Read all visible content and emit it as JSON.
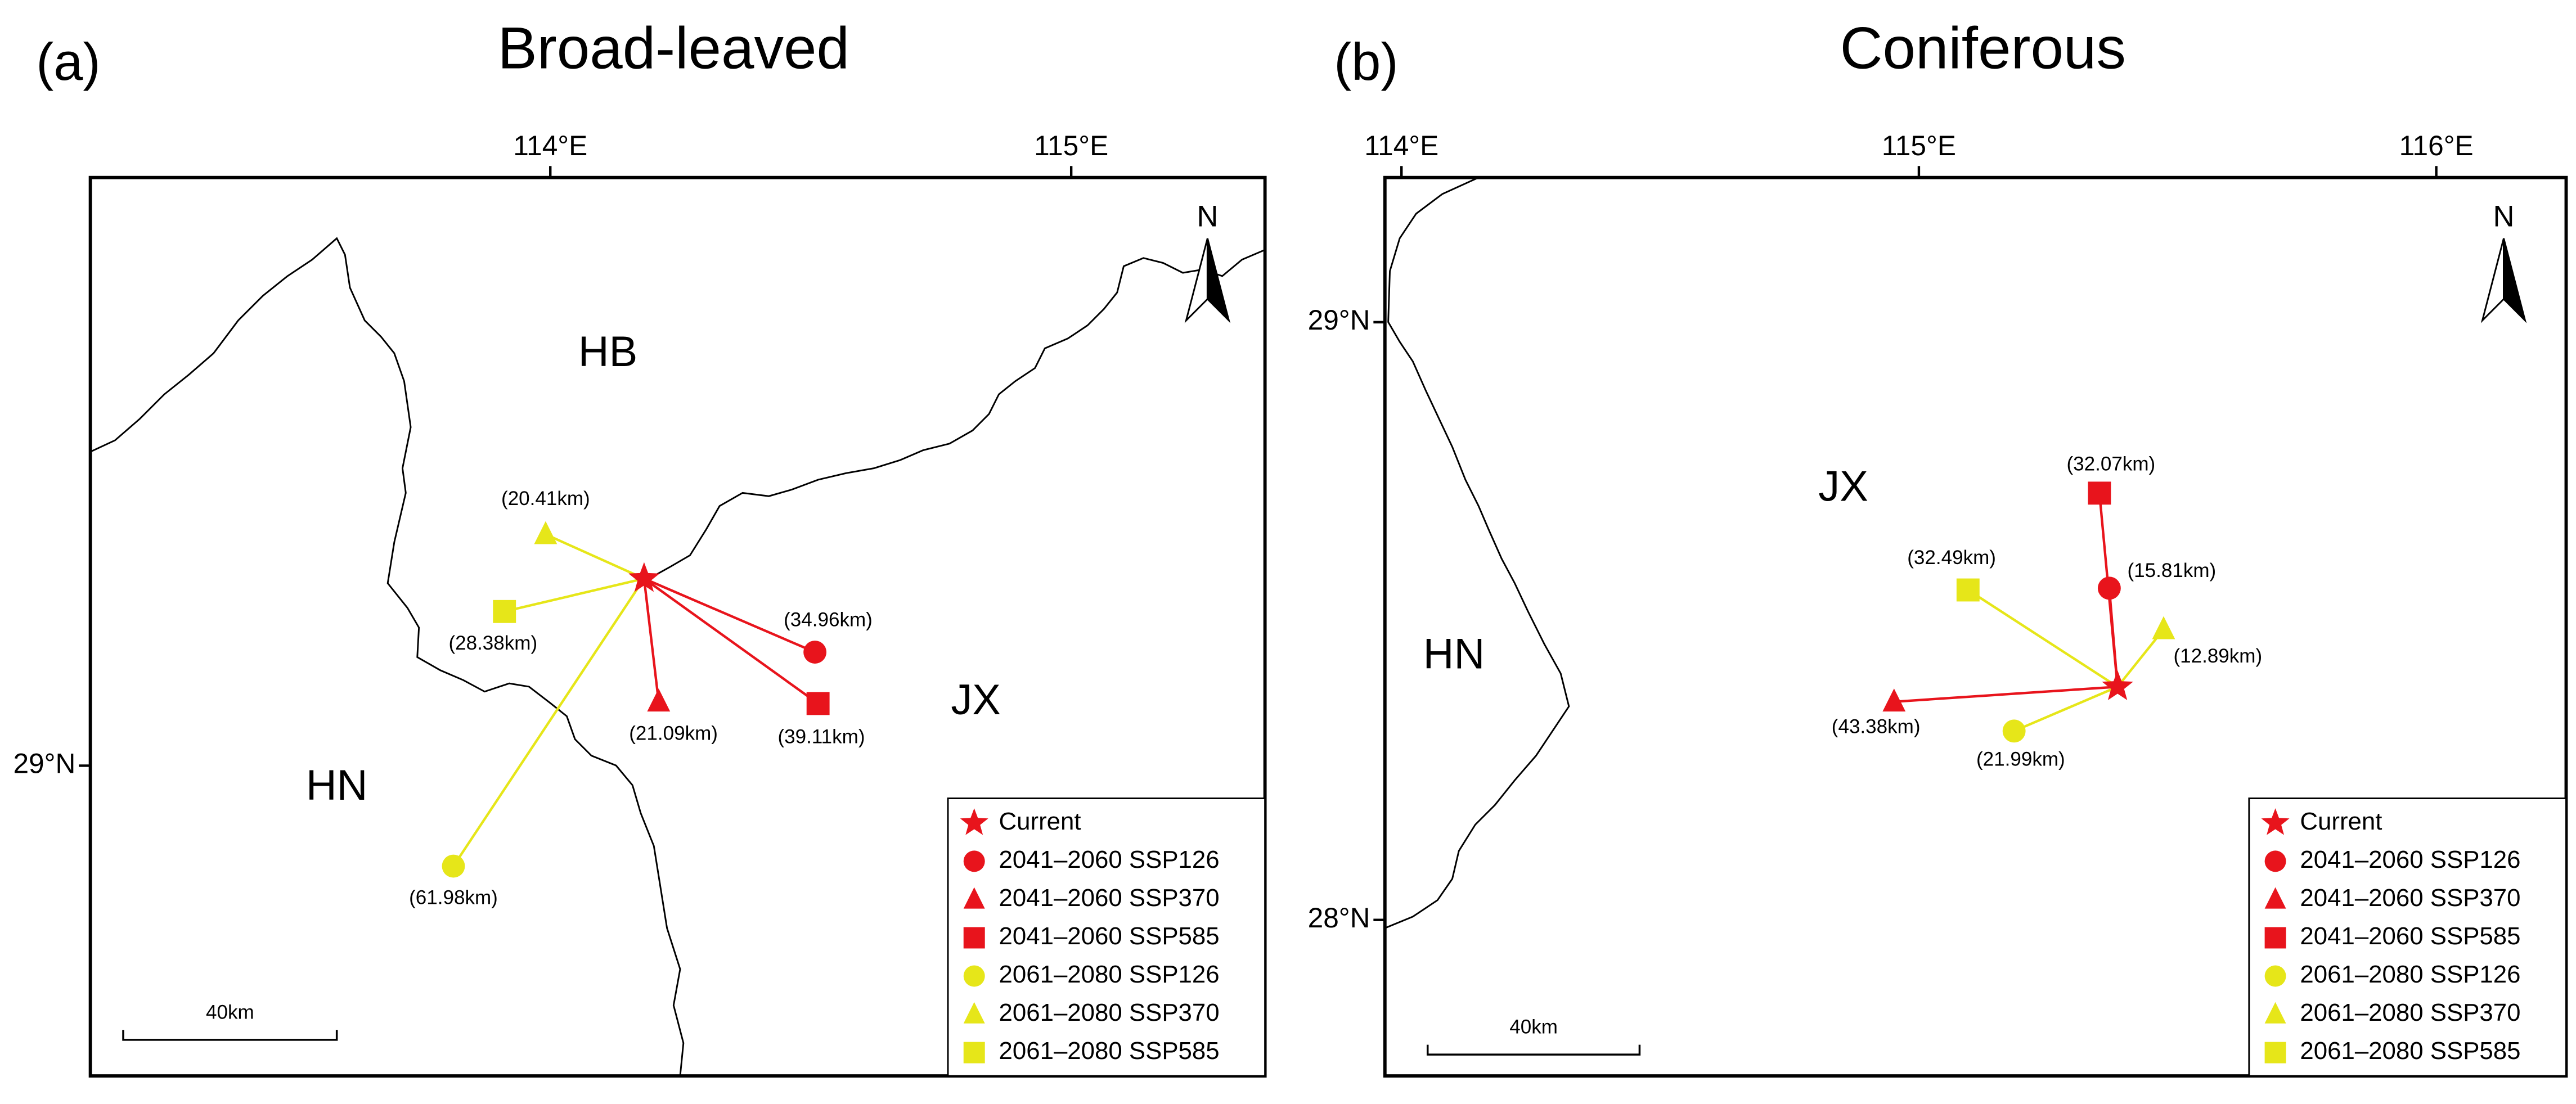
{
  "panels": [
    {
      "label": "(a)",
      "title": "Broad-leaved",
      "xlim": [
        113.117,
        115.372
      ],
      "ylim": [
        28.481,
        29.984
      ],
      "xticks": [
        {
          "value": 114,
          "label": "114°E"
        },
        {
          "value": 115,
          "label": "115°E"
        }
      ],
      "yticks": [
        {
          "value": 29,
          "label": "29°N"
        }
      ],
      "regions": [
        "HB",
        "JX",
        "HN"
      ],
      "north": "N",
      "scale_bar": "40km",
      "current": {
        "name": "Current",
        "color": "#e8141c",
        "lon": 114.18,
        "lat": 29.313
      },
      "series": [
        {
          "name": "2041–2060 SSP126",
          "color": "#e8141c",
          "shape": "circle",
          "lon": 114.508,
          "lat": 29.19,
          "distance": "(34.96km)"
        },
        {
          "name": "2041–2060 SSP370",
          "color": "#e8141c",
          "shape": "triangle",
          "lon": 114.208,
          "lat": 29.107,
          "distance": "(21.09km)"
        },
        {
          "name": "2041–2060 SSP585",
          "color": "#e8141c",
          "shape": "square",
          "lon": 114.514,
          "lat": 29.104,
          "distance": "(39.11km)"
        },
        {
          "name": "2061–2080 SSP126",
          "color": "#e6e619",
          "shape": "circle",
          "lon": 113.814,
          "lat": 28.832,
          "distance": "(61.98km)"
        },
        {
          "name": "2061–2080 SSP370",
          "color": "#e6e619",
          "shape": "triangle",
          "lon": 113.991,
          "lat": 29.387,
          "distance": "(20.41km)"
        },
        {
          "name": "2061–2080 SSP585",
          "color": "#e6e619",
          "shape": "square",
          "lon": 113.912,
          "lat": 29.258,
          "distance": "(28.38km)"
        }
      ]
    },
    {
      "label": "(b)",
      "title": "Coniferous",
      "xlim": [
        113.968,
        116.251
      ],
      "ylim": [
        27.739,
        29.242
      ],
      "xticks": [
        {
          "value": 114,
          "label": "114°E"
        },
        {
          "value": 115,
          "label": "115°E"
        },
        {
          "value": 116,
          "label": "116°E"
        }
      ],
      "yticks": [
        {
          "value": 29,
          "label": "29°N"
        },
        {
          "value": 28,
          "label": "28°N"
        }
      ],
      "regions": [
        "JX",
        "HN"
      ],
      "north": "N",
      "scale_bar": "40km",
      "current": {
        "name": "Current",
        "color": "#e8141c",
        "lon": 115.384,
        "lat": 28.39
      },
      "series": [
        {
          "name": "2041–2060 SSP126",
          "color": "#e8141c",
          "shape": "circle",
          "lon": 115.368,
          "lat": 28.555,
          "distance": "(15.81km)"
        },
        {
          "name": "2041–2060 SSP370",
          "color": "#e8141c",
          "shape": "triangle",
          "lon": 114.952,
          "lat": 28.365,
          "distance": "(43.38km)"
        },
        {
          "name": "2041–2060 SSP585",
          "color": "#e8141c",
          "shape": "square",
          "lon": 115.349,
          "lat": 28.714,
          "distance": "(32.07km)"
        },
        {
          "name": "2061–2080 SSP126",
          "color": "#e6e619",
          "shape": "circle",
          "lon": 115.184,
          "lat": 28.316,
          "distance": "(21.99km)"
        },
        {
          "name": "2061–2080 SSP370",
          "color": "#e6e619",
          "shape": "triangle",
          "lon": 115.473,
          "lat": 28.486,
          "distance": "(12.89km)"
        },
        {
          "name": "2061–2080 SSP585",
          "color": "#e6e619",
          "shape": "square",
          "lon": 115.095,
          "lat": 28.552,
          "distance": "(32.49km)"
        }
      ]
    }
  ]
}
